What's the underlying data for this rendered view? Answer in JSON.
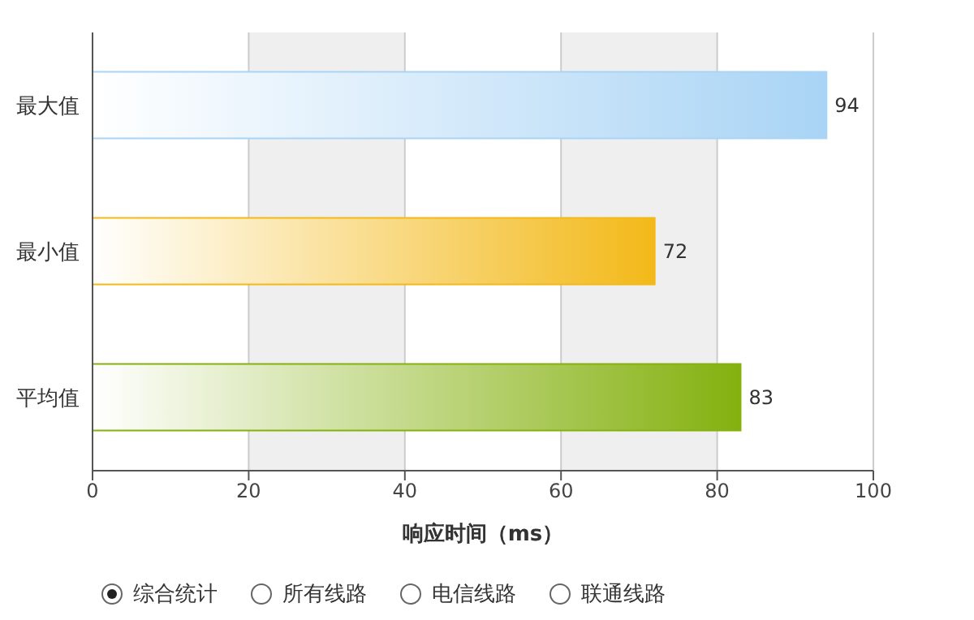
{
  "chart_data": {
    "type": "bar",
    "orientation": "horizontal",
    "categories": [
      "最大值",
      "最小值",
      "平均值"
    ],
    "values": [
      94,
      72,
      83
    ],
    "colors": [
      "#a9d4f5",
      "#f3b919",
      "#84b10f"
    ],
    "xlim": [
      0,
      100
    ],
    "xticks": [
      0,
      20,
      40,
      60,
      80,
      100
    ],
    "xlabel": "响应时间（ms）",
    "grid": "x",
    "data_labels": true,
    "annotations": [
      "综合统计",
      "所有线路",
      "电信线路",
      "联通线路"
    ]
  }
}
